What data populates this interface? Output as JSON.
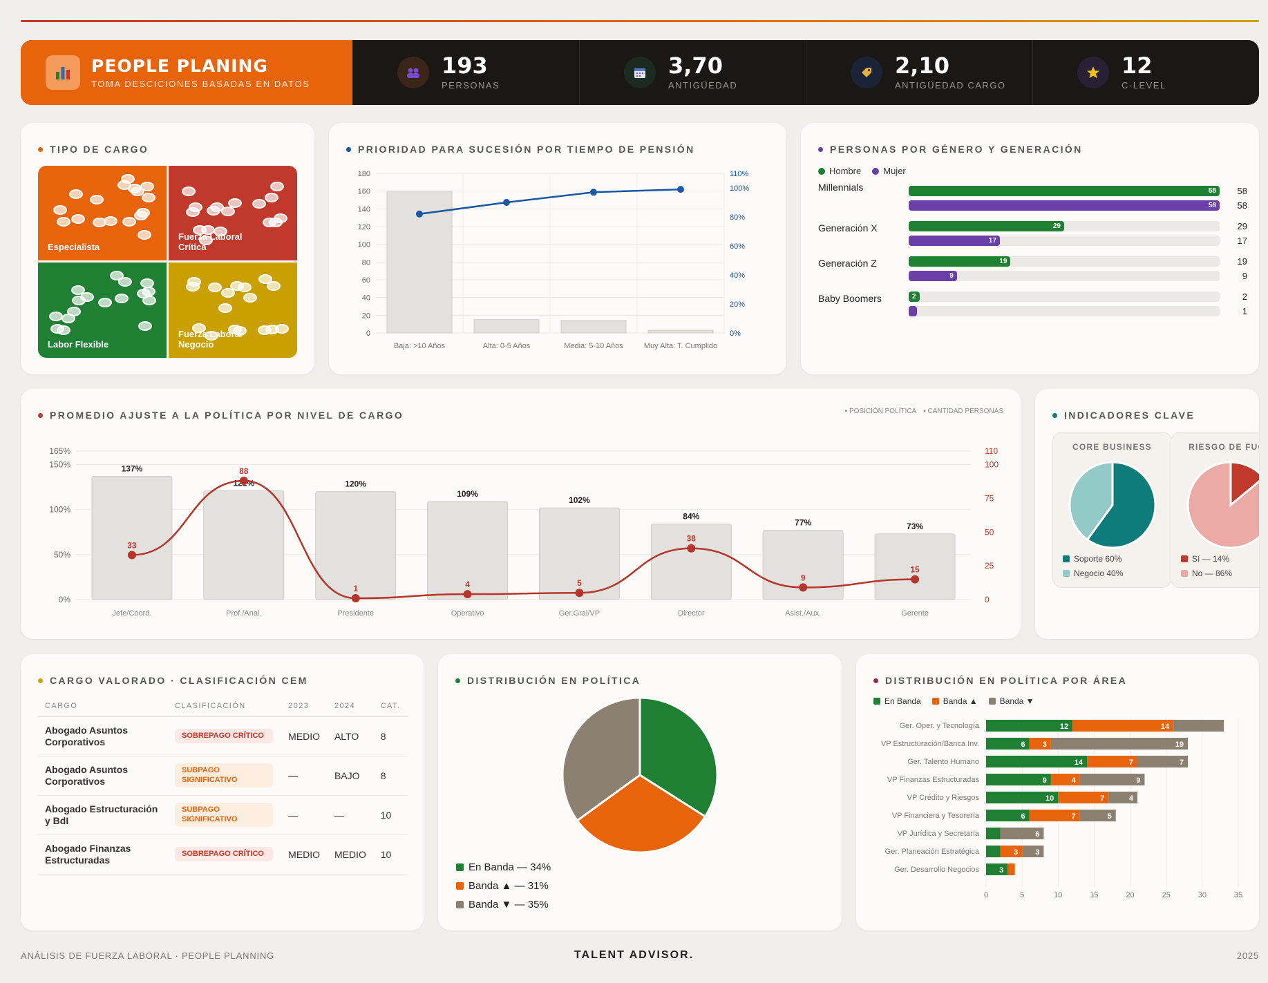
{
  "header": {
    "title": "PEOPLE PLANING",
    "subtitle": "TOMA DESCICIONES BASADAS EN DATOS",
    "kpis": [
      {
        "value": "193",
        "label": "PERSONAS",
        "icon": "people-icon"
      },
      {
        "value": "3,70",
        "label": "ANTIGÜEDAD",
        "icon": "calendar-icon"
      },
      {
        "value": "2,10",
        "label": "ANTIGÜEDAD CARGO",
        "icon": "tag-icon"
      },
      {
        "value": "12",
        "label": "C-LEVEL",
        "icon": "star-icon"
      }
    ]
  },
  "tipo_cargo": {
    "title": "TIPO DE CARGO",
    "cells": [
      {
        "label": "Especialista",
        "color": "#e8640c"
      },
      {
        "label": "Fuerza Laboral Crítica",
        "color": "#c0392b"
      },
      {
        "label": "Labor Flexible",
        "color": "#1f8034"
      },
      {
        "label": "Fuerza Laboral Negocio",
        "color": "#c9a000"
      }
    ]
  },
  "sucesion": {
    "title": "PRIORIDAD PARA SUCESIÓN POR TIEMPO DE PENSIÓN",
    "chart_data": {
      "type": "bar",
      "categories": [
        "Baja: >10 Años",
        "Alta: 0-5 Años",
        "Media: 5-10 Años",
        "Muy Alta: T. Cumplido"
      ],
      "values": [
        160,
        15,
        14,
        3
      ],
      "line_values": [
        82,
        90,
        97,
        99
      ],
      "ylim": [
        0,
        180
      ],
      "y2lim": [
        0,
        110
      ],
      "yticks": [
        "0",
        "20",
        "40",
        "60",
        "80",
        "100",
        "120",
        "140",
        "160",
        "180"
      ],
      "y2ticks": [
        "0%",
        "20%",
        "40%",
        "60%",
        "80%",
        "100%",
        "110%"
      ]
    }
  },
  "genero": {
    "title": "PERSONAS POR GÉNERO Y GENERACIÓN",
    "legend": [
      "Hombre",
      "Mujer"
    ],
    "chart_data": {
      "type": "bar",
      "categories": [
        "Millennials",
        "Generación X",
        "Generación Z",
        "Baby Boomers"
      ],
      "series": [
        {
          "name": "Hombre",
          "values": [
            58,
            29,
            19,
            2
          ]
        },
        {
          "name": "Mujer",
          "values": [
            58,
            17,
            9,
            1
          ]
        }
      ],
      "xlim": [
        0,
        58
      ]
    },
    "colors": {
      "hombre": "#1f8034",
      "mujer": "#6b3fa8"
    }
  },
  "ajuste": {
    "title": "PROMEDIO AJUSTE A LA POLÍTICA POR NIVEL DE CARGO",
    "legend": [
      "POSICIÓN POLÍTICA",
      "CANTIDAD PERSONAS"
    ],
    "chart_data": {
      "type": "bar",
      "categories": [
        "Jefe/Coord.",
        "Prof./Anal.",
        "Presidente",
        "Operativo",
        "Ger.Gral/VP",
        "Director",
        "Asist./Aux.",
        "Gerente"
      ],
      "values": [
        137,
        121,
        120,
        109,
        102,
        84,
        77,
        73
      ],
      "value_labels": [
        "137%",
        "121%",
        "120%",
        "109%",
        "102%",
        "84%",
        "77%",
        "73%"
      ],
      "line_values": [
        33,
        88,
        1,
        4,
        5,
        38,
        9,
        15
      ],
      "ylim": [
        0,
        165
      ],
      "y2lim": [
        0,
        110
      ],
      "yticks": [
        "0%",
        "50%",
        "100%",
        "150%",
        "165%"
      ],
      "y2ticks": [
        "0",
        "25",
        "50",
        "75",
        "100",
        "110"
      ]
    }
  },
  "indicadores": {
    "title": "INDICADORES CLAVE",
    "core": {
      "title": "CORE BUSINESS",
      "legend": [
        "Soporte 60%",
        "Negocio 40%"
      ],
      "values": [
        60,
        40
      ]
    },
    "fuga": {
      "title": "RIESGO DE FUGA",
      "legend": [
        "Sí — 14%",
        "No — 86%"
      ],
      "values": [
        14,
        86
      ]
    }
  },
  "cem": {
    "title": "CARGO VALORADO · CLASIFICACIÓN CEM",
    "headers": [
      "CARGO",
      "CLASIFICACIÓN",
      "2023",
      "2024",
      "CAT."
    ],
    "rows": [
      {
        "cargo": "Abogado Asuntos Corporativos",
        "clasif": "SOBREPAGO CRÍTICO",
        "y2023": "MEDIO",
        "y2024": "ALTO",
        "cat": "8"
      },
      {
        "cargo": "Abogado Asuntos Corporativos",
        "clasif": "SUBPAGO SIGNIFICATIVO",
        "y2023": "—",
        "y2024": "BAJO",
        "cat": "8"
      },
      {
        "cargo": "Abogado Estructuración y BdI",
        "clasif": "SUBPAGO SIGNIFICATIVO",
        "y2023": "—",
        "y2024": "—",
        "cat": "10"
      },
      {
        "cargo": "Abogado Finanzas Estructuradas",
        "clasif": "SOBREPAGO CRÍTICO",
        "y2023": "MEDIO",
        "y2024": "MEDIO",
        "cat": "10"
      }
    ]
  },
  "politica": {
    "title": "DISTRIBUCIÓN EN POLÍTICA",
    "chart_data": {
      "type": "pie",
      "labels": [
        "En Banda — 34%",
        "Banda ▲ — 31%",
        "Banda ▼ — 35%"
      ],
      "values": [
        34,
        31,
        35
      ],
      "colors": [
        "#1f8034",
        "#e8640c",
        "#8c8070"
      ]
    }
  },
  "area": {
    "title": "DISTRIBUCIÓN EN POLÍTICA POR ÁREA",
    "legend": [
      "En Banda",
      "Banda ▲",
      "Banda ▼"
    ],
    "chart_data": {
      "type": "bar",
      "categories": [
        "Ger. Oper. y Tecnología",
        "VP Estructuración/Banca Inv.",
        "Ger. Talento Humano",
        "VP Finanzas Estructuradas",
        "VP Crédito y Riesgos",
        "VP Financiera y Tesorería",
        "VP Jurídica y Secretaría",
        "Ger. Planeación Estratégica",
        "Ger. Desarrollo Negocios"
      ],
      "series": [
        {
          "name": "En Banda",
          "values": [
            12,
            6,
            14,
            9,
            10,
            6,
            2,
            2,
            3
          ]
        },
        {
          "name": "Banda ▲",
          "values": [
            14,
            3,
            7,
            4,
            7,
            7,
            0,
            3,
            1
          ]
        },
        {
          "name": "Banda ▼",
          "values": [
            7,
            19,
            7,
            9,
            4,
            5,
            6,
            3,
            0
          ]
        }
      ],
      "segment_labels": [
        [
          "12",
          "14",
          ""
        ],
        [
          "6",
          "3",
          "19"
        ],
        [
          "14",
          "7",
          "7"
        ],
        [
          "9",
          "4",
          "9"
        ],
        [
          "10",
          "7",
          "4"
        ],
        [
          "6",
          "7",
          "5"
        ],
        [
          "",
          "",
          "6"
        ],
        [
          "",
          "3",
          "3"
        ],
        [
          "3",
          "",
          ""
        ]
      ],
      "xlim": [
        0,
        35
      ],
      "xticks": [
        "0",
        "5",
        "10",
        "15",
        "20",
        "25",
        "30",
        "35"
      ]
    }
  },
  "footer": {
    "left": "ANÁLISIS DE FUERZA LABORAL · PEOPLE PLANNING",
    "center": "TALENT ADVISOR.",
    "right": "2025"
  }
}
